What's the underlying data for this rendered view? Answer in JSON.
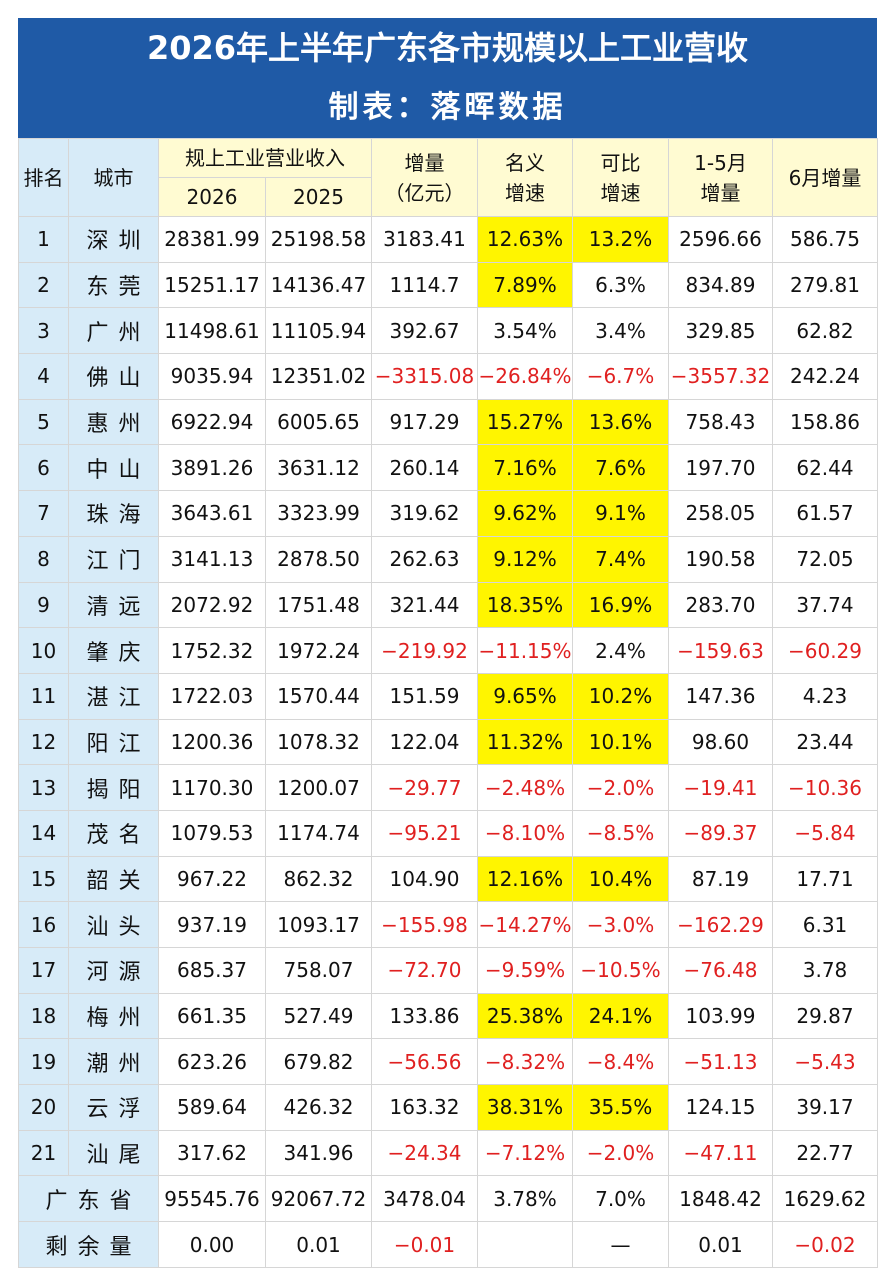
{
  "header": {
    "title": "2026年上半年广东各市规模以上工业营收",
    "subtitle": "制表：落晖数据"
  },
  "table": {
    "group_header": "规上工业营业收入",
    "columns": [
      "排名",
      "城市",
      "2026",
      "2025",
      "增量\n（亿元）",
      "名义\n增速",
      "可比\n增速",
      "1-5月\n增量",
      "6月增量"
    ],
    "rows": [
      [
        "1",
        "深圳",
        "28381.99",
        "25198.58",
        "3183.41",
        {
          "text": "12.63%",
          "highlight": true
        },
        {
          "text": "13.2%",
          "highlight": true
        },
        "2596.66",
        "586.75"
      ],
      [
        "2",
        "东莞",
        "15251.17",
        "14136.47",
        "1114.7",
        {
          "text": "7.89%",
          "highlight": true
        },
        "6.3%",
        "834.89",
        "279.81"
      ],
      [
        "3",
        "广州",
        "11498.61",
        "11105.94",
        "392.67",
        "3.54%",
        "3.4%",
        "329.85",
        "62.82"
      ],
      [
        "4",
        "佛山",
        "9035.94",
        "12351.02",
        "−3315.08",
        "−26.84%",
        "−6.7%",
        "−3557.32",
        "242.24"
      ],
      [
        "5",
        "惠州",
        "6922.94",
        "6005.65",
        "917.29",
        {
          "text": "15.27%",
          "highlight": true
        },
        {
          "text": "13.6%",
          "highlight": true
        },
        "758.43",
        "158.86"
      ],
      [
        "6",
        "中山",
        "3891.26",
        "3631.12",
        "260.14",
        {
          "text": "7.16%",
          "highlight": true
        },
        {
          "text": "7.6%",
          "highlight": true
        },
        "197.70",
        "62.44"
      ],
      [
        "7",
        "珠海",
        "3643.61",
        "3323.99",
        "319.62",
        {
          "text": "9.62%",
          "highlight": true
        },
        {
          "text": "9.1%",
          "highlight": true
        },
        "258.05",
        "61.57"
      ],
      [
        "8",
        "江门",
        "3141.13",
        "2878.50",
        "262.63",
        {
          "text": "9.12%",
          "highlight": true
        },
        {
          "text": "7.4%",
          "highlight": true
        },
        "190.58",
        "72.05"
      ],
      [
        "9",
        "清远",
        "2072.92",
        "1751.48",
        "321.44",
        {
          "text": "18.35%",
          "highlight": true
        },
        {
          "text": "16.9%",
          "highlight": true
        },
        "283.70",
        "37.74"
      ],
      [
        "10",
        "肇庆",
        "1752.32",
        "1972.24",
        "−219.92",
        "−11.15%",
        "2.4%",
        "−159.63",
        "−60.29"
      ],
      [
        "11",
        "湛江",
        "1722.03",
        "1570.44",
        "151.59",
        {
          "text": "9.65%",
          "highlight": true
        },
        {
          "text": "10.2%",
          "highlight": true
        },
        "147.36",
        "4.23"
      ],
      [
        "12",
        "阳江",
        "1200.36",
        "1078.32",
        "122.04",
        {
          "text": "11.32%",
          "highlight": true
        },
        {
          "text": "10.1%",
          "highlight": true
        },
        "98.60",
        "23.44"
      ],
      [
        "13",
        "揭阳",
        "1170.30",
        "1200.07",
        "−29.77",
        "−2.48%",
        "−2.0%",
        "−19.41",
        "−10.36"
      ],
      [
        "14",
        "茂名",
        "1079.53",
        "1174.74",
        "−95.21",
        "−8.10%",
        "−8.5%",
        "−89.37",
        "−5.84"
      ],
      [
        "15",
        "韶关",
        "967.22",
        "862.32",
        "104.90",
        {
          "text": "12.16%",
          "highlight": true
        },
        {
          "text": "10.4%",
          "highlight": true
        },
        "87.19",
        "17.71"
      ],
      [
        "16",
        "汕头",
        "937.19",
        "1093.17",
        "−155.98",
        "−14.27%",
        "−3.0%",
        "−162.29",
        "6.31"
      ],
      [
        "17",
        "河源",
        "685.37",
        "758.07",
        "−72.70",
        "−9.59%",
        "−10.5%",
        "−76.48",
        "3.78"
      ],
      [
        "18",
        "梅州",
        "661.35",
        "527.49",
        "133.86",
        {
          "text": "25.38%",
          "highlight": true
        },
        {
          "text": "24.1%",
          "highlight": true
        },
        "103.99",
        "29.87"
      ],
      [
        "19",
        "潮州",
        "623.26",
        "679.82",
        "−56.56",
        "−8.32%",
        "−8.4%",
        "−51.13",
        "−5.43"
      ],
      [
        "20",
        "云浮",
        "589.64",
        "426.32",
        "163.32",
        {
          "text": "38.31%",
          "highlight": true
        },
        {
          "text": "35.5%",
          "highlight": true
        },
        "124.15",
        "39.17"
      ],
      [
        "21",
        "汕尾",
        "317.62",
        "341.96",
        "−24.34",
        "−7.12%",
        "−2.0%",
        "−47.11",
        "22.77"
      ]
    ],
    "footer_rows": [
      [
        "广东省",
        "95545.76",
        "92067.72",
        "3478.04",
        "3.78%",
        "7.0%",
        "1848.42",
        "1629.62"
      ],
      [
        "剩余量",
        "0.00",
        "0.01",
        "−0.01",
        null,
        "—",
        "0.01",
        "−0.02"
      ]
    ]
  }
}
